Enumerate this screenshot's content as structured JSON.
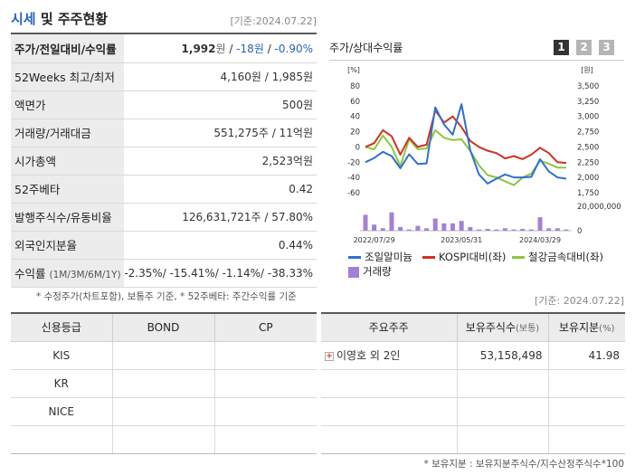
{
  "header": {
    "title_part1": "시세",
    "title_part2": " 및 주주현황",
    "date": "[기준:2024.07.22]"
  },
  "quote": [
    {
      "label": "주가/전일대비/수익률",
      "price": "1,992",
      "price_unit": "원",
      "change": "-18",
      "change_unit": "원",
      "rate": "-0.90%"
    },
    {
      "label": "52Weeks 최고/최저",
      "value": "4,160원 / 1,985원"
    },
    {
      "label": "액면가",
      "value": "500원"
    },
    {
      "label": "거래량/거래대금",
      "value": "551,275주 / 11억원"
    },
    {
      "label": "시가총액",
      "value": "2,523억원"
    },
    {
      "label": "52주베타",
      "value": "0.42"
    },
    {
      "label": "발행주식수/유동비율",
      "value": "126,631,721주 / 57.80%"
    },
    {
      "label": "외국인지분율",
      "value": "0.44%"
    },
    {
      "label": "수익률",
      "label_sub": "(1M/3M/6M/1Y)",
      "value": "-2.35%/ -15.41%/ -1.14%/ -38.33%"
    }
  ],
  "quote_note": "* 수정주가(차트포함), 보통주 기준, * 52주베타: 주간수익률 기준",
  "chart_panel": {
    "title": "주가/상대수익률",
    "tabs": [
      "1",
      "2",
      "3"
    ],
    "legend": [
      {
        "label": "조일알미늄",
        "color": "#2f6fd0"
      },
      {
        "label": "KOSPI대비(좌)",
        "color": "#d0311f"
      },
      {
        "label": "철강금속대비(좌)",
        "color": "#8cc63f"
      },
      {
        "label": "거래량",
        "color": "#a57fd6"
      }
    ]
  },
  "chart_data": {
    "type": "line",
    "x_ticks": [
      "2022/07/29",
      "2023/05/31",
      "2024/03/29"
    ],
    "left_axis": {
      "unit": "[%]",
      "ticks": [
        80,
        60,
        40,
        20,
        0,
        -20,
        -40,
        -60
      ],
      "ylim": [
        -60,
        80
      ]
    },
    "right_axis": {
      "unit": "[원]",
      "ticks": [
        "3,500",
        "3,250",
        "3,000",
        "2,750",
        "2,500",
        "2,250",
        "2,000",
        "1,750"
      ],
      "ylim": [
        1750,
        3500
      ]
    },
    "volume_axis": {
      "ticks": [
        "20,000,000",
        "0"
      ],
      "ylim": [
        0,
        20000000
      ]
    },
    "series": [
      {
        "name": "조일알미늄",
        "axis": "right",
        "values": [
          2250,
          2320,
          2420,
          2350,
          2150,
          2380,
          2220,
          2230,
          3150,
          2870,
          2700,
          3200,
          2450,
          2050,
          1900,
          1980,
          2050,
          2000,
          2000,
          2010,
          2300,
          2100,
          2000,
          1980
        ]
      },
      {
        "name": "KOSPI대비(좌)",
        "axis": "left",
        "values": [
          0,
          5,
          22,
          14,
          -10,
          12,
          0,
          3,
          48,
          32,
          40,
          26,
          8,
          0,
          -5,
          -8,
          -15,
          -12,
          -16,
          -10,
          -1,
          -8,
          -20,
          -21
        ]
      },
      {
        "name": "철강금속대비(좌)",
        "axis": "left",
        "values": [
          0,
          -3,
          15,
          0,
          -25,
          10,
          -3,
          -2,
          22,
          12,
          9,
          10,
          -5,
          -24,
          -37,
          -40,
          -45,
          -50,
          -40,
          -35,
          -18,
          -22,
          -27,
          -27
        ]
      }
    ],
    "volume": [
      13000000,
      5000000,
      2000000,
      15000000,
      3000000,
      1000000,
      4000000,
      2000000,
      10000000,
      6000000,
      6000000,
      8000000,
      3000000,
      1000000,
      1500000,
      1000000,
      2000000,
      1000000,
      1500000,
      1000000,
      11000000,
      2000000,
      2000000,
      1000000
    ],
    "grid": false
  },
  "date2": "[기준: 2024.07.22]",
  "credit": {
    "headers": [
      "신용등급",
      "BOND",
      "CP"
    ],
    "rows": [
      [
        "KIS",
        "",
        ""
      ],
      [
        "KR",
        "",
        ""
      ],
      [
        "NICE",
        "",
        ""
      ],
      [
        "",
        "",
        ""
      ]
    ]
  },
  "holders": {
    "headers": [
      "주요주주",
      "보유주식수",
      "(보통)",
      "보유지분",
      "(%)"
    ],
    "rows": [
      {
        "name": "이영호 외 2인",
        "shares": "53,158,498",
        "pct": "41.98"
      },
      {
        "name": "",
        "shares": "",
        "pct": ""
      },
      {
        "name": "",
        "shares": "",
        "pct": ""
      },
      {
        "name": "",
        "shares": "",
        "pct": ""
      }
    ]
  },
  "holders_note": "* 보유지분 : 보유지분주식수/지수산정주식수*100"
}
